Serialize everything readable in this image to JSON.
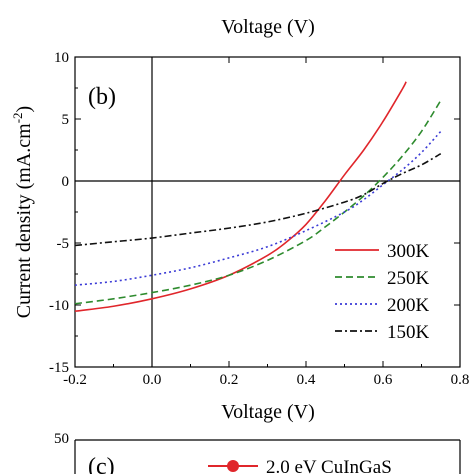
{
  "top_fragment": {
    "xlabel": "Voltage (V)"
  },
  "chart_data": {
    "type": "line",
    "panel_label": "(b)",
    "xlabel": "Voltage (V)",
    "ylabel_main": "Current density (mA.cm",
    "ylabel_sup": "-2",
    "ylabel_close": ")",
    "xlim": [
      -0.2,
      0.8
    ],
    "ylim": [
      -15,
      10
    ],
    "x_ticks": [
      -0.2,
      0.0,
      0.2,
      0.4,
      0.6,
      0.8
    ],
    "x_tick_labels": [
      "-0.2",
      "0.0",
      "0.2",
      "0.4",
      "0.6",
      "0.8"
    ],
    "y_ticks": [
      -15,
      -10,
      -5,
      0,
      5,
      10
    ],
    "y_tick_labels": [
      "-15",
      "-10",
      "-5",
      "0",
      "5",
      "10"
    ],
    "grid": false,
    "zero_lines": true,
    "legend_position": "lower-right",
    "series": [
      {
        "name": "300K",
        "color": "#e0262b",
        "dash": "solid",
        "x": [
          -0.2,
          -0.1,
          0.0,
          0.1,
          0.2,
          0.3,
          0.35,
          0.4,
          0.45,
          0.5,
          0.55,
          0.6,
          0.65,
          0.66
        ],
        "y": [
          -10.5,
          -10.1,
          -9.5,
          -8.7,
          -7.6,
          -6.0,
          -4.9,
          -3.5,
          -1.6,
          0.5,
          2.5,
          4.8,
          7.4,
          8.0
        ]
      },
      {
        "name": "250K",
        "color": "#2e8b2e",
        "dash": "dashed",
        "x": [
          -0.2,
          -0.1,
          0.0,
          0.1,
          0.2,
          0.3,
          0.4,
          0.45,
          0.5,
          0.55,
          0.6,
          0.65,
          0.7,
          0.75
        ],
        "y": [
          -9.9,
          -9.5,
          -9.0,
          -8.4,
          -7.6,
          -6.4,
          -4.8,
          -3.7,
          -2.5,
          -1.2,
          0.3,
          2.0,
          4.0,
          6.5
        ]
      },
      {
        "name": "200K",
        "color": "#3b3bd6",
        "dash": "dotted",
        "x": [
          -0.2,
          -0.1,
          0.0,
          0.1,
          0.2,
          0.3,
          0.4,
          0.5,
          0.55,
          0.6,
          0.65,
          0.7,
          0.75
        ],
        "y": [
          -8.4,
          -8.1,
          -7.6,
          -7.0,
          -6.2,
          -5.3,
          -4.0,
          -2.5,
          -1.5,
          -0.3,
          0.9,
          2.3,
          4.0
        ]
      },
      {
        "name": "150K",
        "color": "#111111",
        "dash": "dashdot",
        "x": [
          -0.2,
          -0.1,
          0.0,
          0.1,
          0.2,
          0.3,
          0.4,
          0.5,
          0.55,
          0.6,
          0.65,
          0.7,
          0.75
        ],
        "y": [
          -5.2,
          -4.9,
          -4.6,
          -4.2,
          -3.8,
          -3.3,
          -2.6,
          -1.7,
          -1.1,
          -0.2,
          0.6,
          1.3,
          2.2
        ]
      }
    ]
  },
  "bottom_fragment": {
    "y_tick_label": "50",
    "panel_label": "(c)",
    "legend_label": "2.0 eV CuInGaS",
    "legend_color": "#e0262b"
  }
}
